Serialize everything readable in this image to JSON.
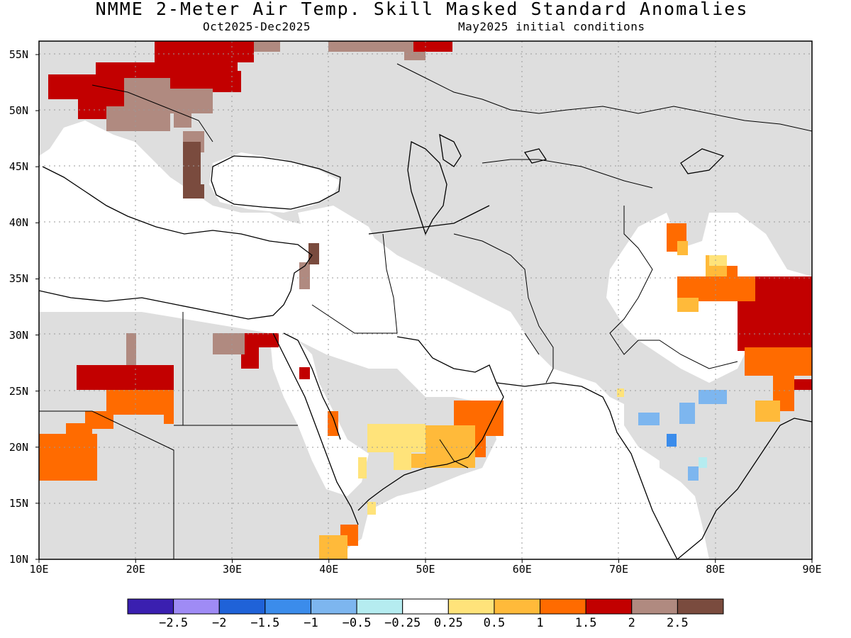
{
  "title": "NMME 2-Meter Air Temp. Skill Masked Standard Anomalies",
  "subtitle_left": "Oct2025-Dec2025",
  "subtitle_right": "May2025 initial conditions",
  "lat_labels": [
    "55N",
    "50N",
    "45N",
    "40N",
    "35N",
    "30N",
    "25N",
    "20N",
    "15N",
    "10N"
  ],
  "lon_labels": [
    "10E",
    "20E",
    "30E",
    "40E",
    "50E",
    "60E",
    "70E",
    "80E",
    "90E"
  ],
  "colorbar": {
    "colors": [
      "#3a1fb0",
      "#9f8bf5",
      "#1f62d8",
      "#3b8ceb",
      "#7db6ef",
      "#b5ecf0",
      "#ffffff",
      "#ffe37a",
      "#ffba3a",
      "#ff6b00",
      "#c20000",
      "#b08a80",
      "#7a4b3e"
    ],
    "labels": [
      "-2.5",
      "-2",
      "-1.5",
      "-1",
      "-0.5",
      "-0.25",
      "0.25",
      "0.5",
      "1",
      "1.5",
      "2",
      "2.5"
    ]
  },
  "legend_colors": {
    "masked": "#dedede",
    "land_background": "#ffffff",
    "coast": "#000000"
  }
}
